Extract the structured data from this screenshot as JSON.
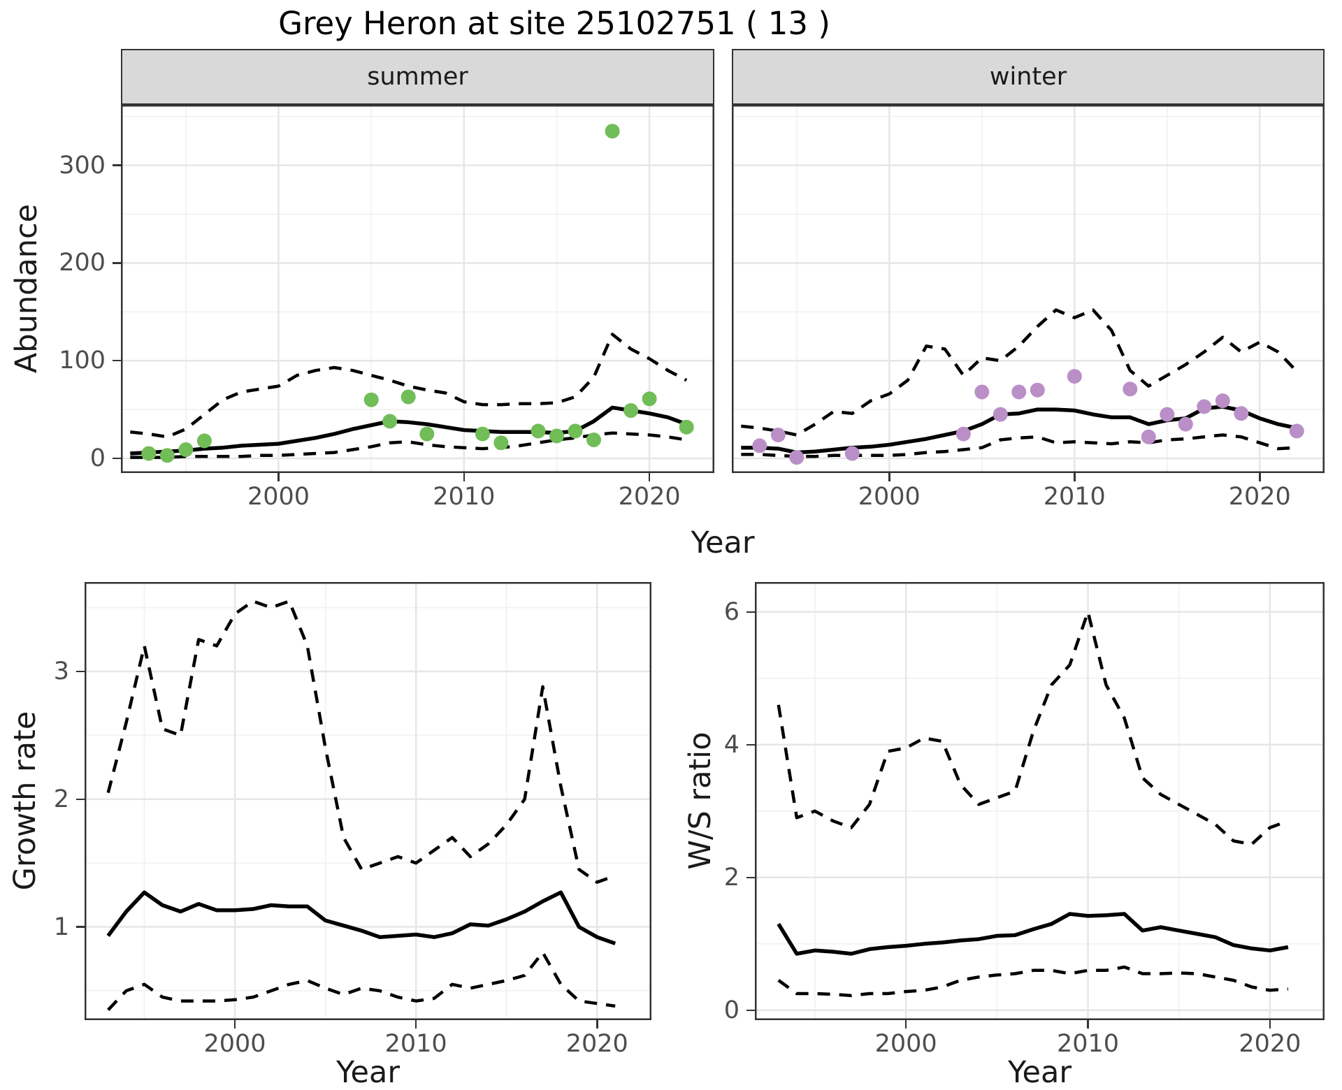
{
  "title": "Grey Heron at site 25102751 ( 13 )",
  "facets": [
    {
      "label": "summer"
    },
    {
      "label": "winter"
    }
  ],
  "labels": {
    "abundance": "Abundance",
    "growth_rate": "Growth rate",
    "ws_ratio": "W/S ratio",
    "year_top": "Year",
    "year_bottom_left": "Year",
    "year_bottom_right": "Year"
  },
  "colors": {
    "point_summer": "#71bd57",
    "point_winter": "#ba8fc7",
    "line": "#000000",
    "strip_bg": "#d9d9d9",
    "panel_border": "#333333",
    "grid_major": "#e6e6e6",
    "grid_minor": "#f2f2f2",
    "axis_text": "#4d4d4d",
    "tick_mark": "#333333"
  },
  "chart_data": [
    {
      "type": "line",
      "facet": "summer",
      "xlabel": "Year",
      "ylabel": "Abundance",
      "xlim": [
        1991.5,
        2023.5
      ],
      "ylim": [
        -15,
        362
      ],
      "xticks": [
        2000,
        2010,
        2020
      ],
      "xticks_minor": [
        1995,
        2005,
        2015
      ],
      "yticks": [
        0,
        100,
        200,
        300
      ],
      "yticks_minor": [
        50,
        150,
        250,
        350
      ],
      "grid": true,
      "legend": "none",
      "series": [
        {
          "name": "lower_ci",
          "style": "dashed",
          "x": [
            1992,
            1993,
            1994,
            1995,
            1996,
            1997,
            1998,
            1999,
            2000,
            2001,
            2002,
            2003,
            2004,
            2005,
            2006,
            2007,
            2008,
            2009,
            2010,
            2011,
            2012,
            2013,
            2014,
            2015,
            2016,
            2017,
            2018,
            2019,
            2020,
            2021,
            2022
          ],
          "y": [
            1,
            1,
            1,
            2,
            2,
            2,
            2,
            3,
            3,
            4,
            5,
            6,
            9,
            12,
            16,
            17,
            14,
            12,
            11,
            10,
            11,
            13,
            16,
            19,
            21,
            24,
            26,
            25,
            24,
            22,
            19
          ]
        },
        {
          "name": "upper_ci",
          "style": "dashed",
          "x": [
            1992,
            1993,
            1994,
            1995,
            1996,
            1997,
            1998,
            1999,
            2000,
            2001,
            2002,
            2003,
            2004,
            2005,
            2006,
            2007,
            2008,
            2009,
            2010,
            2011,
            2012,
            2013,
            2014,
            2015,
            2016,
            2017,
            2018,
            2019,
            2020,
            2021,
            2022
          ],
          "y": [
            27,
            25,
            22,
            30,
            45,
            60,
            68,
            71,
            74,
            85,
            90,
            93,
            90,
            85,
            80,
            74,
            70,
            67,
            58,
            55,
            55,
            56,
            56,
            57,
            63,
            83,
            127,
            112,
            102,
            90,
            80
          ]
        },
        {
          "name": "trend",
          "style": "solid",
          "x": [
            1992,
            1993,
            1994,
            1995,
            1996,
            1997,
            1998,
            1999,
            2000,
            2001,
            2002,
            2003,
            2004,
            2005,
            2006,
            2007,
            2008,
            2009,
            2010,
            2011,
            2012,
            2013,
            2014,
            2015,
            2016,
            2017,
            2018,
            2019,
            2020,
            2021,
            2022
          ],
          "y": [
            5,
            6,
            7,
            8,
            10,
            11,
            13,
            14,
            15,
            18,
            21,
            25,
            30,
            34,
            38,
            37,
            35,
            32,
            29,
            28,
            27,
            27,
            27,
            26,
            28,
            38,
            52,
            49,
            46,
            42,
            35
          ]
        }
      ],
      "points": {
        "name": "observed_counts",
        "color_key": "point_summer",
        "x": [
          1993,
          1994,
          1995,
          1996,
          2005,
          2006,
          2007,
          2008,
          2011,
          2012,
          2014,
          2015,
          2016,
          2017,
          2018,
          2019,
          2020,
          2022
        ],
        "y": [
          5,
          3,
          9,
          18,
          60,
          38,
          63,
          25,
          25,
          16,
          28,
          23,
          28,
          19,
          335,
          49,
          61,
          32
        ]
      }
    },
    {
      "type": "line",
      "facet": "winter",
      "xlabel": "Year",
      "ylabel": "Abundance",
      "xlim": [
        1991.5,
        2023.5
      ],
      "ylim": [
        -15,
        362
      ],
      "xticks": [
        2000,
        2010,
        2020
      ],
      "xticks_minor": [
        1995,
        2005,
        2015
      ],
      "yticks": [
        0,
        100,
        200,
        300
      ],
      "yticks_minor": [
        50,
        150,
        250,
        350
      ],
      "grid": true,
      "legend": "none",
      "series": [
        {
          "name": "lower_ci",
          "style": "dashed",
          "x": [
            1992,
            1993,
            1994,
            1995,
            1996,
            1997,
            1998,
            1999,
            2000,
            2001,
            2002,
            2003,
            2004,
            2005,
            2006,
            2007,
            2008,
            2009,
            2010,
            2011,
            2012,
            2013,
            2014,
            2015,
            2016,
            2017,
            2018,
            2019,
            2020,
            2021,
            2022
          ],
          "y": [
            4,
            4,
            3,
            2,
            2,
            3,
            3,
            3,
            3,
            4,
            6,
            7,
            9,
            11,
            19,
            21,
            22,
            16,
            17,
            16,
            15,
            17,
            16,
            19,
            20,
            22,
            24,
            22,
            16,
            10,
            11
          ]
        },
        {
          "name": "upper_ci",
          "style": "dashed",
          "x": [
            1992,
            1993,
            1994,
            1995,
            1996,
            1997,
            1998,
            1999,
            2000,
            2001,
            2002,
            2003,
            2004,
            2005,
            2006,
            2007,
            2008,
            2009,
            2010,
            2011,
            2012,
            2013,
            2014,
            2015,
            2016,
            2017,
            2018,
            2019,
            2020,
            2021,
            2022
          ],
          "y": [
            33,
            31,
            28,
            24,
            35,
            48,
            46,
            59,
            66,
            80,
            115,
            112,
            85,
            103,
            100,
            115,
            135,
            152,
            144,
            152,
            131,
            90,
            74,
            85,
            96,
            109,
            124,
            109,
            119,
            109,
            89
          ]
        },
        {
          "name": "trend",
          "style": "solid",
          "x": [
            1992,
            1993,
            1994,
            1995,
            1996,
            1997,
            1998,
            1999,
            2000,
            2001,
            2002,
            2003,
            2004,
            2005,
            2006,
            2007,
            2008,
            2009,
            2010,
            2011,
            2012,
            2013,
            2014,
            2015,
            2016,
            2017,
            2018,
            2019,
            2020,
            2021,
            2022
          ],
          "y": [
            11,
            11,
            10,
            6,
            7,
            9,
            11,
            12,
            14,
            17,
            20,
            24,
            28,
            35,
            45,
            46,
            50,
            50,
            49,
            45,
            42,
            42,
            35,
            39,
            41,
            51,
            53,
            49,
            41,
            35,
            31
          ]
        }
      ],
      "points": {
        "name": "observed_counts",
        "color_key": "point_winter",
        "x": [
          1993,
          1994,
          1995,
          1998,
          2004,
          2005,
          2006,
          2007,
          2008,
          2010,
          2013,
          2014,
          2015,
          2016,
          2017,
          2018,
          2019,
          2022
        ],
        "y": [
          13,
          24,
          1,
          5,
          25,
          68,
          45,
          68,
          70,
          84,
          71,
          22,
          45,
          35,
          53,
          59,
          46,
          28
        ]
      }
    },
    {
      "type": "line",
      "facet": null,
      "xlabel": "Year",
      "ylabel": "Growth rate",
      "xlim": [
        1991.7,
        2023
      ],
      "ylim": [
        0.27,
        3.7
      ],
      "xticks": [
        2000,
        2010,
        2020
      ],
      "xticks_minor": [
        1995,
        2005,
        2015
      ],
      "yticks": [
        1,
        2,
        3
      ],
      "yticks_minor": [
        0.5,
        1.5,
        2.5,
        3.5
      ],
      "grid": true,
      "legend": "none",
      "series": [
        {
          "name": "lower_ci",
          "style": "dashed",
          "x": [
            1993,
            1994,
            1995,
            1996,
            1997,
            1998,
            1999,
            2000,
            2001,
            2002,
            2003,
            2004,
            2005,
            2006,
            2007,
            2008,
            2009,
            2010,
            2011,
            2012,
            2013,
            2014,
            2015,
            2016,
            2017,
            2018,
            2019,
            2020,
            2021
          ],
          "y": [
            0.35,
            0.5,
            0.55,
            0.45,
            0.42,
            0.42,
            0.42,
            0.43,
            0.45,
            0.5,
            0.55,
            0.58,
            0.52,
            0.47,
            0.52,
            0.5,
            0.45,
            0.42,
            0.44,
            0.55,
            0.52,
            0.55,
            0.58,
            0.62,
            0.8,
            0.55,
            0.42,
            0.4,
            0.38
          ]
        },
        {
          "name": "upper_ci",
          "style": "dashed",
          "x": [
            1993,
            1994,
            1995,
            1996,
            1997,
            1998,
            1999,
            2000,
            2001,
            2002,
            2003,
            2004,
            2005,
            2006,
            2007,
            2008,
            2009,
            2010,
            2011,
            2012,
            2013,
            2014,
            2015,
            2016,
            2017,
            2018,
            2019,
            2020,
            2021
          ],
          "y": [
            2.05,
            2.6,
            3.2,
            2.55,
            2.5,
            3.25,
            3.2,
            3.45,
            3.55,
            3.5,
            3.55,
            3.2,
            2.4,
            1.7,
            1.45,
            1.5,
            1.55,
            1.5,
            1.6,
            1.7,
            1.55,
            1.65,
            1.8,
            2.0,
            2.88,
            2.1,
            1.45,
            1.35,
            1.4
          ]
        },
        {
          "name": "median",
          "style": "solid",
          "x": [
            1993,
            1994,
            1995,
            1996,
            1997,
            1998,
            1999,
            2000,
            2001,
            2002,
            2003,
            2004,
            2005,
            2006,
            2007,
            2008,
            2009,
            2010,
            2011,
            2012,
            2013,
            2014,
            2015,
            2016,
            2017,
            2018,
            2019,
            2020,
            2021
          ],
          "y": [
            0.93,
            1.12,
            1.27,
            1.17,
            1.12,
            1.18,
            1.13,
            1.13,
            1.14,
            1.17,
            1.16,
            1.16,
            1.05,
            1.01,
            0.97,
            0.92,
            0.93,
            0.94,
            0.92,
            0.95,
            1.02,
            1.01,
            1.06,
            1.12,
            1.2,
            1.27,
            1.0,
            0.92,
            0.87
          ]
        }
      ],
      "points": null
    },
    {
      "type": "line",
      "facet": null,
      "xlabel": "Year",
      "ylabel": "W/S ratio",
      "xlim": [
        1991.7,
        2023
      ],
      "ylim": [
        -0.15,
        6.45
      ],
      "xticks": [
        2000,
        2010,
        2020
      ],
      "xticks_minor": [
        1995,
        2005,
        2015
      ],
      "yticks": [
        0,
        2,
        4,
        6
      ],
      "yticks_minor": [
        1,
        3,
        5
      ],
      "grid": true,
      "legend": "none",
      "series": [
        {
          "name": "lower_ci",
          "style": "dashed",
          "x": [
            1993,
            1994,
            1995,
            1996,
            1997,
            1998,
            1999,
            2000,
            2001,
            2002,
            2003,
            2004,
            2005,
            2006,
            2007,
            2008,
            2009,
            2010,
            2011,
            2012,
            2013,
            2014,
            2015,
            2016,
            2017,
            2018,
            2019,
            2020,
            2021
          ],
          "y": [
            0.45,
            0.25,
            0.25,
            0.24,
            0.22,
            0.25,
            0.25,
            0.28,
            0.3,
            0.35,
            0.45,
            0.5,
            0.53,
            0.55,
            0.6,
            0.6,
            0.55,
            0.6,
            0.6,
            0.65,
            0.55,
            0.55,
            0.56,
            0.55,
            0.5,
            0.45,
            0.35,
            0.3,
            0.32
          ]
        },
        {
          "name": "upper_ci",
          "style": "dashed",
          "x": [
            1993,
            1994,
            1995,
            1996,
            1997,
            1998,
            1999,
            2000,
            2001,
            2002,
            2003,
            2004,
            2005,
            2006,
            2007,
            2008,
            2009,
            2010,
            2011,
            2012,
            2013,
            2014,
            2015,
            2016,
            2017,
            2018,
            2019,
            2020,
            2021
          ],
          "y": [
            4.6,
            2.9,
            3.0,
            2.85,
            2.75,
            3.1,
            3.9,
            3.95,
            4.1,
            4.05,
            3.4,
            3.1,
            3.2,
            3.3,
            4.2,
            4.9,
            5.2,
            6.0,
            4.9,
            4.4,
            3.5,
            3.25,
            3.1,
            2.95,
            2.8,
            2.55,
            2.5,
            2.75,
            2.85
          ]
        },
        {
          "name": "median",
          "style": "solid",
          "x": [
            1993,
            1994,
            1995,
            1996,
            1997,
            1998,
            1999,
            2000,
            2001,
            2002,
            2003,
            2004,
            2005,
            2006,
            2007,
            2008,
            2009,
            2010,
            2011,
            2012,
            2013,
            2014,
            2015,
            2016,
            2017,
            2018,
            2019,
            2020,
            2021
          ],
          "y": [
            1.3,
            0.85,
            0.9,
            0.88,
            0.85,
            0.92,
            0.95,
            0.97,
            1.0,
            1.02,
            1.05,
            1.07,
            1.12,
            1.13,
            1.22,
            1.3,
            1.45,
            1.42,
            1.43,
            1.45,
            1.2,
            1.25,
            1.2,
            1.15,
            1.1,
            0.98,
            0.93,
            0.9,
            0.95
          ]
        }
      ],
      "points": null
    }
  ]
}
